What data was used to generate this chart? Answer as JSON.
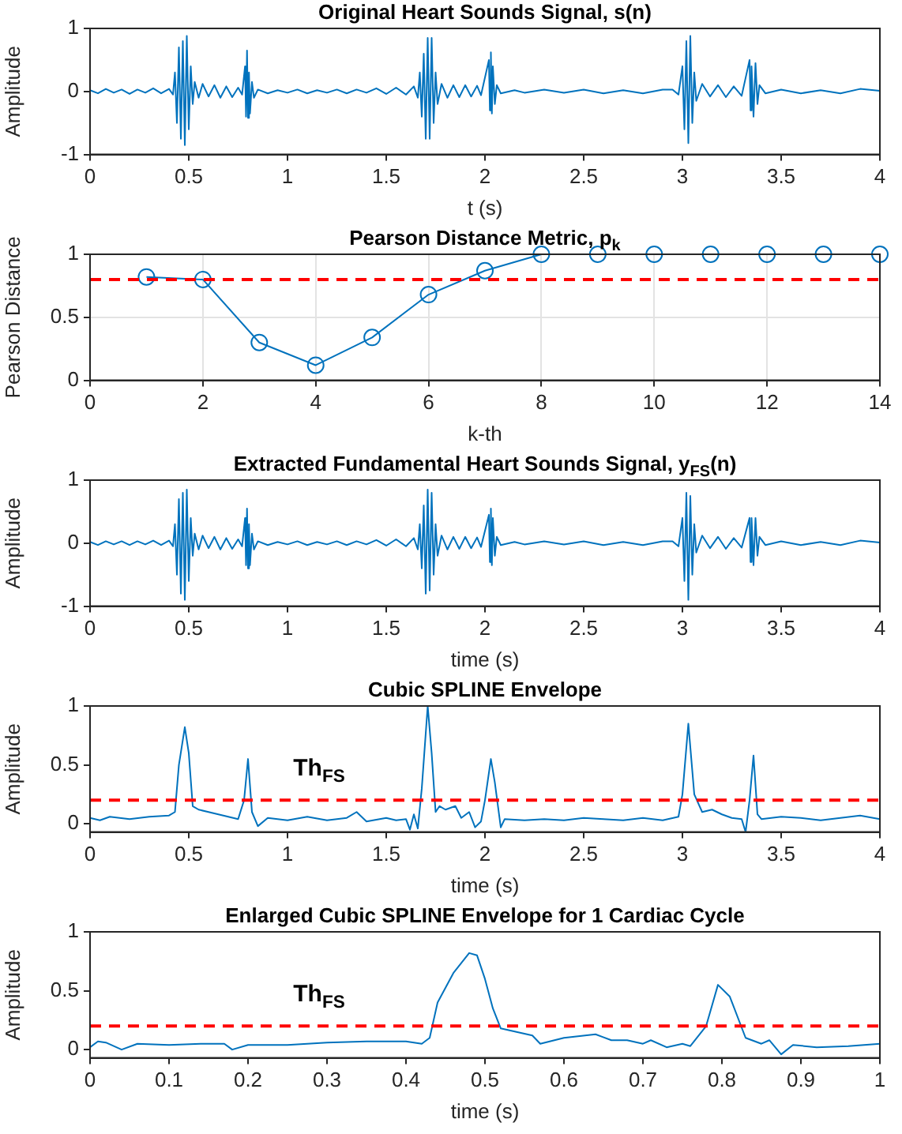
{
  "chart_data": [
    {
      "type": "line",
      "title": "Original Heart Sounds Signal, s(n)",
      "xlabel": "t (s)",
      "ylabel": "Amplitude",
      "xlim": [
        0,
        4
      ],
      "xticks": [
        0,
        0.5,
        1,
        1.5,
        2,
        2.5,
        3,
        3.5,
        4
      ],
      "ylim": [
        -1,
        1
      ],
      "yticks": [
        -1,
        0,
        1
      ],
      "grid": false,
      "series": [
        {
          "color": "#0072bd",
          "x": [
            0,
            0.04,
            0.08,
            0.12,
            0.16,
            0.2,
            0.24,
            0.28,
            0.32,
            0.36,
            0.4,
            0.42,
            0.43,
            0.44,
            0.45,
            0.46,
            0.47,
            0.48,
            0.49,
            0.5,
            0.51,
            0.52,
            0.53,
            0.55,
            0.57,
            0.6,
            0.63,
            0.66,
            0.69,
            0.72,
            0.75,
            0.77,
            0.785,
            0.79,
            0.795,
            0.8,
            0.805,
            0.81,
            0.82,
            0.83,
            0.85,
            0.9,
            0.95,
            1,
            1.05,
            1.1,
            1.15,
            1.2,
            1.25,
            1.3,
            1.35,
            1.4,
            1.45,
            1.5,
            1.55,
            1.6,
            1.64,
            1.66,
            1.67,
            1.68,
            1.69,
            1.7,
            1.71,
            1.72,
            1.73,
            1.74,
            1.75,
            1.76,
            1.78,
            1.81,
            1.84,
            1.87,
            1.9,
            1.93,
            1.96,
            1.98,
            2.02,
            2.025,
            2.03,
            2.035,
            2.04,
            2.05,
            2.06,
            2.08,
            2.15,
            2.2,
            2.3,
            2.4,
            2.5,
            2.6,
            2.7,
            2.8,
            2.9,
            2.95,
            2.98,
            3,
            3.01,
            3.02,
            3.03,
            3.04,
            3.05,
            3.06,
            3.07,
            3.1,
            3.14,
            3.18,
            3.22,
            3.26,
            3.3,
            3.34,
            3.345,
            3.35,
            3.36,
            3.37,
            3.38,
            3.39,
            3.42,
            3.5,
            3.6,
            3.7,
            3.8,
            3.9,
            4
          ],
          "values": [
            0.02,
            -0.03,
            0.04,
            -0.02,
            0.03,
            -0.04,
            0.03,
            -0.02,
            0.05,
            -0.03,
            0.04,
            -0.05,
            0.3,
            -0.5,
            0.7,
            -0.75,
            0.8,
            -0.85,
            0.88,
            -0.6,
            0.4,
            -0.2,
            0.15,
            -0.1,
            0.12,
            -0.08,
            0.1,
            -0.1,
            0.08,
            -0.09,
            0.06,
            -0.05,
            0.4,
            -0.4,
            0.65,
            -0.42,
            0.3,
            -0.35,
            0.15,
            -0.1,
            0.03,
            -0.03,
            0.02,
            -0.02,
            0.03,
            -0.03,
            0.02,
            -0.02,
            0.03,
            -0.03,
            0.03,
            -0.02,
            0.05,
            -0.04,
            0.06,
            -0.05,
            0.08,
            -0.1,
            0.3,
            -0.4,
            0.6,
            -0.75,
            0.85,
            -0.75,
            0.85,
            -0.5,
            0.3,
            -0.2,
            0.12,
            -0.1,
            0.1,
            -0.09,
            0.1,
            -0.08,
            0.09,
            -0.06,
            0.5,
            -0.3,
            0.62,
            -0.35,
            0.4,
            -0.2,
            0.1,
            -0.03,
            0.02,
            -0.02,
            0.03,
            -0.02,
            0.03,
            -0.03,
            0.02,
            -0.03,
            0.03,
            0.03,
            -0.05,
            0.4,
            -0.6,
            0.8,
            -0.82,
            0.88,
            -0.5,
            0.3,
            -0.15,
            0.12,
            -0.08,
            0.1,
            -0.09,
            0.08,
            -0.07,
            0.5,
            -0.3,
            0.4,
            -0.4,
            0.45,
            -0.2,
            0.1,
            -0.03,
            0.03,
            -0.03,
            0.02,
            -0.03,
            0.04,
            0.01
          ]
        }
      ]
    },
    {
      "type": "line",
      "title": "Pearson Distance Metric, p$_{k}$",
      "xlabel": "k-th",
      "ylabel": "Pearson Distance",
      "xlim": [
        0,
        14
      ],
      "xticks": [
        0,
        2,
        4,
        6,
        8,
        10,
        12,
        14
      ],
      "ylim": [
        0,
        1
      ],
      "yticks": [
        0,
        0.5,
        1
      ],
      "grid": true,
      "marker": "circle",
      "ref_lines": [
        {
          "axis": "y",
          "value": 0.8,
          "color": "#ff0000",
          "line_style": "dashed"
        }
      ],
      "series": [
        {
          "color": "#0072bd",
          "x": [
            1,
            2,
            3,
            4,
            5,
            6,
            7,
            8,
            9,
            10,
            11,
            12,
            13,
            14
          ],
          "values": [
            0.82,
            0.8,
            0.3,
            0.12,
            0.34,
            0.68,
            0.87,
            1,
            1,
            1,
            1,
            1,
            1,
            1
          ]
        }
      ]
    },
    {
      "type": "line",
      "title": "Extracted Fundamental Heart Sounds Signal, y$_{FS}$(n)",
      "xlabel": "time (s)",
      "ylabel": "Amplitude",
      "xlim": [
        0,
        4
      ],
      "xticks": [
        0,
        0.5,
        1,
        1.5,
        2,
        2.5,
        3,
        3.5,
        4
      ],
      "ylim": [
        -1,
        1
      ],
      "yticks": [
        -1,
        0,
        1
      ],
      "grid": false,
      "series": [
        {
          "color": "#0072bd",
          "x": [
            0,
            0.04,
            0.08,
            0.12,
            0.16,
            0.2,
            0.24,
            0.28,
            0.32,
            0.36,
            0.4,
            0.42,
            0.43,
            0.44,
            0.45,
            0.46,
            0.47,
            0.48,
            0.49,
            0.5,
            0.51,
            0.52,
            0.53,
            0.55,
            0.57,
            0.6,
            0.63,
            0.66,
            0.69,
            0.72,
            0.75,
            0.77,
            0.785,
            0.79,
            0.795,
            0.8,
            0.805,
            0.81,
            0.82,
            0.83,
            0.85,
            0.9,
            0.95,
            1,
            1.05,
            1.1,
            1.15,
            1.2,
            1.25,
            1.3,
            1.35,
            1.4,
            1.45,
            1.5,
            1.55,
            1.6,
            1.64,
            1.66,
            1.67,
            1.68,
            1.69,
            1.7,
            1.71,
            1.72,
            1.73,
            1.74,
            1.75,
            1.76,
            1.78,
            1.81,
            1.84,
            1.87,
            1.9,
            1.93,
            1.96,
            1.98,
            2.02,
            2.025,
            2.03,
            2.035,
            2.04,
            2.05,
            2.06,
            2.08,
            2.15,
            2.2,
            2.3,
            2.4,
            2.5,
            2.6,
            2.7,
            2.8,
            2.9,
            2.95,
            2.98,
            3,
            3.01,
            3.02,
            3.03,
            3.04,
            3.05,
            3.06,
            3.07,
            3.1,
            3.14,
            3.18,
            3.22,
            3.26,
            3.3,
            3.34,
            3.345,
            3.35,
            3.36,
            3.37,
            3.38,
            3.39,
            3.42,
            3.5,
            3.6,
            3.7,
            3.8,
            3.9,
            4
          ],
          "values": [
            0.02,
            -0.03,
            0.03,
            -0.02,
            0.03,
            -0.03,
            0.03,
            -0.02,
            0.04,
            -0.03,
            0.04,
            -0.05,
            0.3,
            -0.5,
            0.7,
            -0.8,
            0.8,
            -0.9,
            0.85,
            -0.6,
            0.4,
            -0.2,
            0.15,
            -0.1,
            0.12,
            -0.08,
            0.1,
            -0.1,
            0.08,
            -0.09,
            0.06,
            -0.05,
            0.4,
            -0.35,
            0.55,
            -0.4,
            0.3,
            -0.35,
            0.15,
            -0.1,
            0.03,
            -0.03,
            0.02,
            -0.02,
            0.03,
            -0.03,
            0.02,
            -0.02,
            0.03,
            -0.03,
            0.03,
            -0.02,
            0.05,
            -0.04,
            0.06,
            -0.05,
            0.08,
            -0.1,
            0.3,
            -0.4,
            0.6,
            -0.8,
            0.85,
            -0.75,
            0.8,
            -0.5,
            0.3,
            -0.2,
            0.12,
            -0.1,
            0.1,
            -0.09,
            0.1,
            -0.08,
            0.09,
            -0.06,
            0.45,
            -0.3,
            0.55,
            -0.35,
            0.4,
            -0.2,
            0.1,
            -0.03,
            0.02,
            -0.02,
            0.03,
            -0.02,
            0.03,
            -0.03,
            0.02,
            -0.03,
            0.03,
            0.03,
            -0.05,
            0.4,
            -0.6,
            0.8,
            -0.9,
            0.75,
            -0.5,
            0.3,
            -0.15,
            0.12,
            -0.08,
            0.1,
            -0.09,
            0.08,
            -0.07,
            0.4,
            -0.3,
            0.4,
            -0.35,
            0.4,
            -0.2,
            0.1,
            -0.03,
            0.03,
            -0.03,
            0.02,
            -0.03,
            0.04,
            0.01
          ]
        }
      ]
    },
    {
      "type": "line",
      "title": "Cubic SPLINE Envelope",
      "xlabel": "time (s)",
      "ylabel": "Amplitude",
      "xlim": [
        0,
        4
      ],
      "xticks": [
        0,
        0.5,
        1,
        1.5,
        2,
        2.5,
        3,
        3.5,
        4
      ],
      "ylim": [
        -0.07,
        1
      ],
      "yticks": [
        0,
        0.5,
        1
      ],
      "grid": false,
      "ref_lines": [
        {
          "axis": "y",
          "value": 0.2,
          "color": "#ff0000",
          "line_style": "dashed",
          "label": "Th$_{FS}$"
        }
      ],
      "series": [
        {
          "color": "#0072bd",
          "x": [
            0,
            0.05,
            0.1,
            0.2,
            0.3,
            0.4,
            0.43,
            0.45,
            0.48,
            0.5,
            0.52,
            0.55,
            0.6,
            0.65,
            0.7,
            0.75,
            0.78,
            0.8,
            0.82,
            0.85,
            0.9,
            1,
            1.1,
            1.2,
            1.3,
            1.35,
            1.4,
            1.5,
            1.55,
            1.6,
            1.62,
            1.64,
            1.66,
            1.68,
            1.71,
            1.73,
            1.75,
            1.77,
            1.8,
            1.85,
            1.88,
            1.92,
            1.95,
            1.98,
            2,
            2.03,
            2.05,
            2.08,
            2.1,
            2.2,
            2.3,
            2.4,
            2.5,
            2.6,
            2.7,
            2.8,
            2.9,
            2.98,
            3,
            3.03,
            3.06,
            3.1,
            3.15,
            3.2,
            3.25,
            3.3,
            3.32,
            3.34,
            3.36,
            3.38,
            3.4,
            3.5,
            3.6,
            3.7,
            3.8,
            3.9,
            4
          ],
          "values": [
            0.05,
            0.03,
            0.06,
            0.04,
            0.06,
            0.07,
            0.1,
            0.5,
            0.82,
            0.6,
            0.15,
            0.12,
            0.1,
            0.08,
            0.06,
            0.04,
            0.2,
            0.55,
            0.1,
            -0.02,
            0.05,
            0.03,
            0.06,
            0.03,
            0.05,
            0.1,
            0.02,
            0.05,
            0.03,
            0.04,
            -0.05,
            0.08,
            -0.04,
            0.3,
            1,
            0.6,
            0.1,
            0.15,
            0.12,
            0.15,
            0.05,
            0.1,
            -0.03,
            0.02,
            0.2,
            0.55,
            0.35,
            -0.03,
            0.04,
            0.03,
            0.04,
            0.03,
            0.05,
            0.04,
            0.03,
            0.05,
            0.03,
            0.06,
            0.25,
            0.85,
            0.25,
            0.1,
            0.12,
            0.08,
            0.05,
            0.04,
            -0.07,
            0.2,
            0.58,
            0.08,
            0.04,
            0.06,
            0.05,
            0.03,
            0.05,
            0.07,
            0.04
          ]
        }
      ]
    },
    {
      "type": "line",
      "title": "Enlarged Cubic SPLINE Envelope for 1 Cardiac Cycle",
      "xlabel": "time (s)",
      "ylabel": "Amplitude",
      "xlim": [
        0,
        1
      ],
      "xticks": [
        0,
        0.1,
        0.2,
        0.3,
        0.4,
        0.5,
        0.6,
        0.7,
        0.8,
        0.9,
        1
      ],
      "ylim": [
        -0.07,
        1
      ],
      "yticks": [
        0,
        0.5,
        1
      ],
      "grid": false,
      "ref_lines": [
        {
          "axis": "y",
          "value": 0.2,
          "color": "#ff0000",
          "line_style": "dashed",
          "label": "Th$_{FS}$"
        }
      ],
      "series": [
        {
          "color": "#0072bd",
          "x": [
            0,
            0.01,
            0.02,
            0.04,
            0.06,
            0.1,
            0.14,
            0.17,
            0.18,
            0.2,
            0.25,
            0.3,
            0.35,
            0.4,
            0.42,
            0.43,
            0.44,
            0.46,
            0.48,
            0.49,
            0.5,
            0.51,
            0.52,
            0.54,
            0.56,
            0.57,
            0.6,
            0.64,
            0.66,
            0.68,
            0.7,
            0.71,
            0.73,
            0.75,
            0.76,
            0.78,
            0.795,
            0.81,
            0.83,
            0.85,
            0.86,
            0.875,
            0.89,
            0.92,
            0.96,
            1
          ],
          "values": [
            0.02,
            0.07,
            0.06,
            0,
            0.05,
            0.04,
            0.05,
            0.05,
            0,
            0.04,
            0.04,
            0.06,
            0.07,
            0.07,
            0.05,
            0.1,
            0.4,
            0.65,
            0.82,
            0.8,
            0.6,
            0.35,
            0.18,
            0.15,
            0.12,
            0.05,
            0.1,
            0.13,
            0.08,
            0.08,
            0.05,
            0.08,
            0.02,
            0.05,
            0.03,
            0.2,
            0.55,
            0.45,
            0.1,
            0.05,
            0.08,
            -0.04,
            0.04,
            0.02,
            0.03,
            0.05
          ]
        }
      ]
    }
  ]
}
